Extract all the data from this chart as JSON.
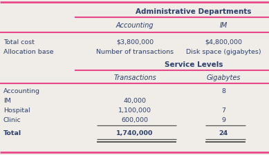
{
  "title1": "Administrative Departments",
  "col1_header": "Accounting",
  "col2_header": "IM",
  "admin_rows": [
    [
      "Total cost",
      "$3,800,000",
      "$4,800,000"
    ],
    [
      "Allocation base",
      "Number of transactions",
      "Disk space (gigabytes)"
    ]
  ],
  "title2": "Service Levels",
  "col3_header": "Transactions",
  "col4_header": "Gigabytes",
  "service_rows": [
    [
      "Accounting",
      "",
      "8"
    ],
    [
      "IM",
      "40,000",
      ""
    ],
    [
      "Hospital",
      "1,100,000",
      "7"
    ],
    [
      "Clinic",
      "600,000",
      "9"
    ],
    [
      "Total",
      "1,740,000",
      "24"
    ]
  ],
  "pink_color": "#E8488A",
  "header_color": "#2c3e6b",
  "text_color": "#2c3e6b",
  "underline_color": "#555555",
  "bg_color": "#f0ede8"
}
